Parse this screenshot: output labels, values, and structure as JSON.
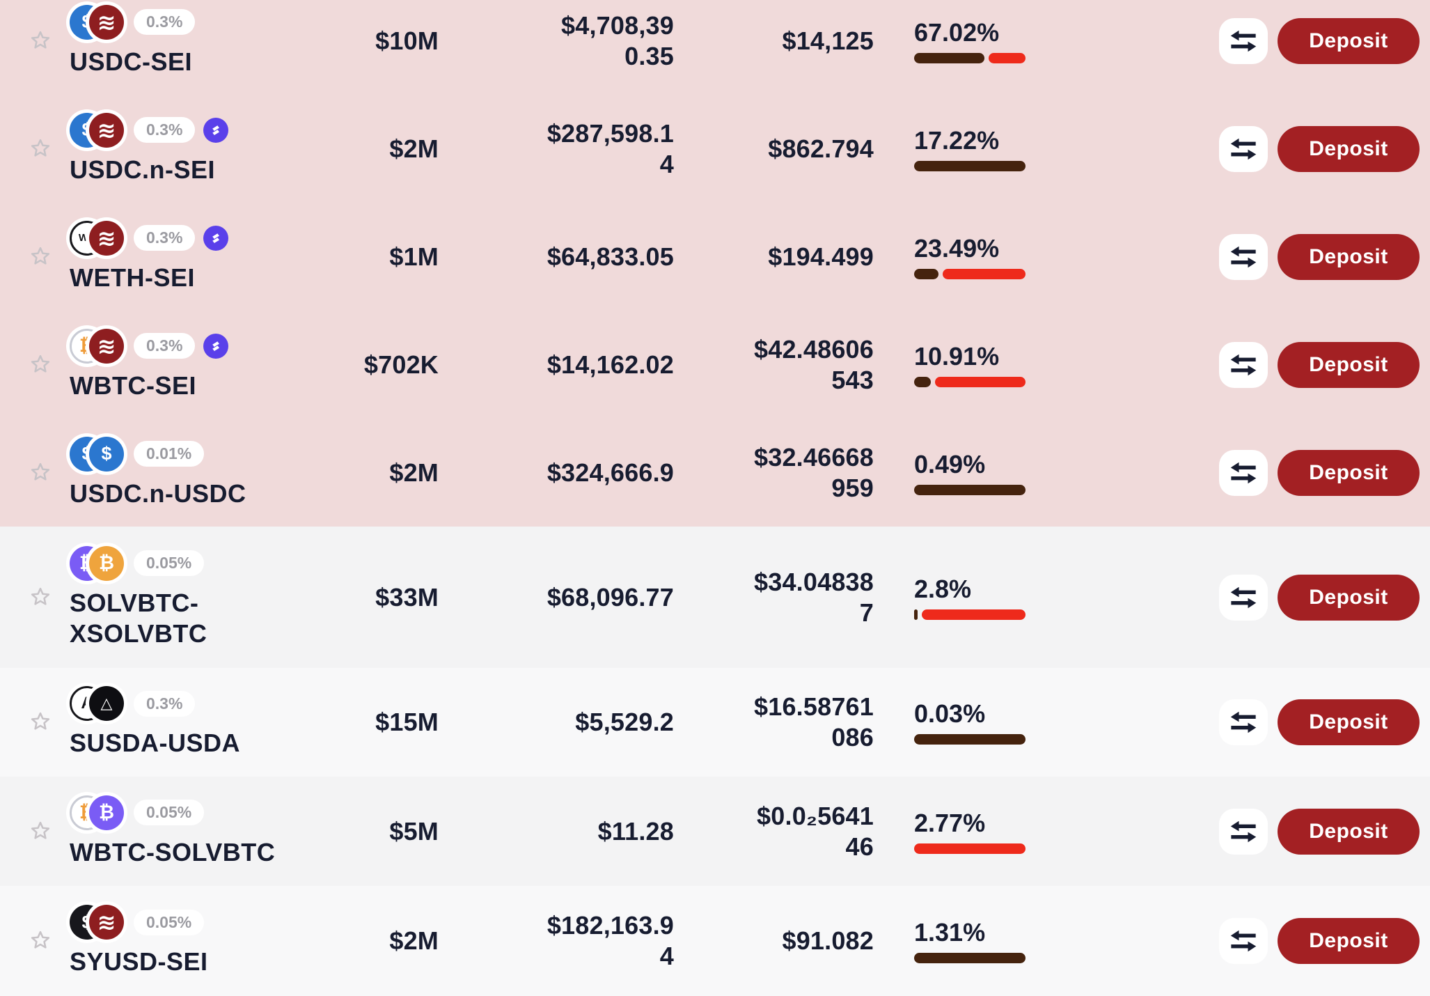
{
  "colors": {
    "pink_row": "#f0dada",
    "gray_row_a": "#f3f3f4",
    "gray_row_b": "#f8f8f9",
    "text_navy": "#171c30",
    "fee_bar_brown": "#45230e",
    "reward_bar_red": "#ee2a1b",
    "deposit_red": "#a32023",
    "badge_text_gray": "#9b9ba1",
    "star_gray": "#c7c3c7",
    "boost_badge_purple": "#5a40ea"
  },
  "tokens": {
    "usdc": {
      "name": "USDC",
      "glyph": "$",
      "bg": "#2b77cf",
      "fg": "#ffffff",
      "border": "none",
      "size": 27
    },
    "sei": {
      "name": "SEI",
      "glyph": "≋",
      "bg": "#8e1e20",
      "fg": "#ffffff",
      "border": "none",
      "size": 32
    },
    "weth": {
      "name": "WETH",
      "glyph": "WE",
      "bg": "#ffffff",
      "fg": "#17171b",
      "border": "3px solid #17171b",
      "size": 15
    },
    "wbtc": {
      "name": "WBTC",
      "glyph": "₿",
      "bg": "#ffffff",
      "fg": "#ef9c3a",
      "border": "3px solid #c9cbd4",
      "size": 27
    },
    "solvbtc": {
      "name": "SOLVBTC",
      "glyph": "₿",
      "bg": "#7a5cf5",
      "fg": "#ffffff",
      "border": "none",
      "size": 27
    },
    "xsolvbtc": {
      "name": "XSOLVBTC",
      "glyph": "₿",
      "bg": "#efa43d",
      "fg": "#ffffff",
      "border": "none",
      "size": 27
    },
    "susda": {
      "name": "SUSDA",
      "glyph": "A",
      "bg": "#ffffff",
      "fg": "#17171b",
      "border": "3px solid #17171b",
      "size": 24
    },
    "usda": {
      "name": "USDA",
      "glyph": "△",
      "bg": "#0e0e12",
      "fg": "#ffffff",
      "border": "none",
      "size": 22
    },
    "syusd": {
      "name": "SYUSD",
      "glyph": "$",
      "bg": "#17171c",
      "fg": "#ffffff",
      "border": "none",
      "size": 27
    }
  },
  "table": {
    "deposit_label": "Deposit",
    "rows": [
      {
        "pair": "USDC-SEI",
        "fee": "0.3%",
        "boosted": false,
        "tokens": [
          "usdc",
          "sei"
        ],
        "tvl": "$10M",
        "volume": "$4,708,390.35",
        "fees": "$14,125",
        "apr": "67.02%",
        "bar": [
          {
            "type": "fee",
            "pct": 63
          },
          {
            "type": "reward",
            "pct": 33
          }
        ]
      },
      {
        "pair": "USDC.n-SEI",
        "fee": "0.3%",
        "boosted": true,
        "tokens": [
          "usdc",
          "sei"
        ],
        "tvl": "$2M",
        "volume": "$287,598.14",
        "fees": "$862.794",
        "apr": "17.22%",
        "bar": [
          {
            "type": "fee",
            "pct": 100
          }
        ]
      },
      {
        "pair": "WETH-SEI",
        "fee": "0.3%",
        "boosted": true,
        "tokens": [
          "weth",
          "sei"
        ],
        "tvl": "$1M",
        "volume": "$64,833.05",
        "fees": "$194.499",
        "apr": "23.49%",
        "bar": [
          {
            "type": "fee",
            "pct": 22
          },
          {
            "type": "reward",
            "pct": 74
          }
        ]
      },
      {
        "pair": "WBTC-SEI",
        "fee": "0.3%",
        "boosted": true,
        "tokens": [
          "wbtc",
          "sei"
        ],
        "tvl": "$702K",
        "volume": "$14,162.02",
        "fees": "$42.48606543",
        "apr": "10.91%",
        "bar": [
          {
            "type": "fee",
            "pct": 15
          },
          {
            "type": "reward",
            "pct": 81
          }
        ]
      },
      {
        "pair": "USDC.n-USDC",
        "fee": "0.01%",
        "boosted": false,
        "tokens": [
          "usdc",
          "usdc"
        ],
        "tvl": "$2M",
        "volume": "$324,666.9",
        "fees": "$32.46668959",
        "apr": "0.49%",
        "bar": [
          {
            "type": "fee",
            "pct": 100
          }
        ]
      },
      {
        "pair": "SOLVBTC-XSOLVBTC",
        "fee": "0.05%",
        "boosted": false,
        "tokens": [
          "solvbtc",
          "xsolvbtc"
        ],
        "tvl": "$33M",
        "volume": "$68,096.77",
        "fees": "$34.048387",
        "apr": "2.8%",
        "bar": [
          {
            "type": "fee",
            "pct": 3
          },
          {
            "type": "reward",
            "pct": 93
          }
        ]
      },
      {
        "pair": "SUSDA-USDA",
        "fee": "0.3%",
        "boosted": false,
        "tokens": [
          "susda",
          "usda"
        ],
        "tvl": "$15M",
        "volume": "$5,529.2",
        "fees": "$16.58761086",
        "apr": "0.03%",
        "bar": [
          {
            "type": "fee",
            "pct": 100
          }
        ]
      },
      {
        "pair": "WBTC-SOLVBTC",
        "fee": "0.05%",
        "boosted": false,
        "tokens": [
          "wbtc",
          "solvbtc"
        ],
        "tvl": "$5M",
        "volume": "$11.28",
        "fees": "$0.0₂564146",
        "apr": "2.77%",
        "bar": [
          {
            "type": "reward",
            "pct": 100
          }
        ]
      },
      {
        "pair": "SYUSD-SEI",
        "fee": "0.05%",
        "boosted": false,
        "tokens": [
          "syusd",
          "sei"
        ],
        "tvl": "$2M",
        "volume": "$182,163.94",
        "fees": "$91.082",
        "apr": "1.31%",
        "bar": [
          {
            "type": "fee",
            "pct": 100
          }
        ]
      }
    ]
  }
}
